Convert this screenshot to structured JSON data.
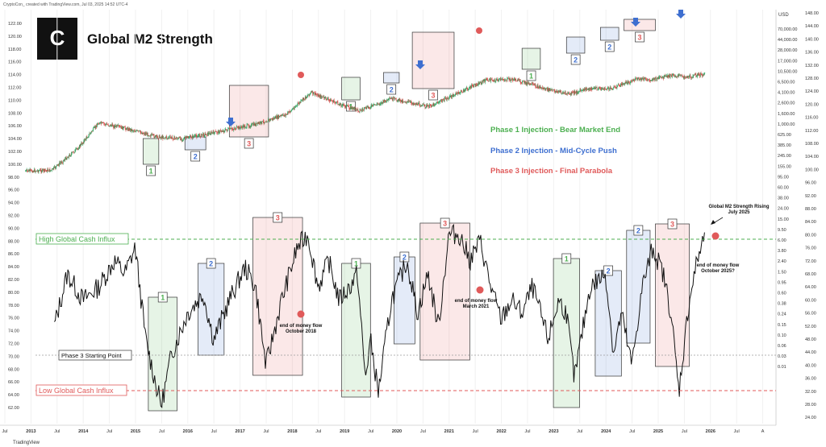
{
  "header": {
    "credit": "CryptoCon_ created with TradingView.com, Jul 03, 2025 14:52 UTC-4",
    "logo_letter": "C",
    "title": "Global M2 Strength",
    "watermark": "TradingView"
  },
  "colors": {
    "phase1": "#4caf50",
    "phase2": "#3e6fd0",
    "phase3": "#e05a5a",
    "candle_up": "#2e9e5b",
    "candle_down": "#d64545",
    "line": "#111111"
  },
  "legend": {
    "phase1": "Phase 1 Injection - Bear Market End",
    "phase2": "Phase 2 Injection - Mid-Cycle Push",
    "phase3": "Phase 3 Injection - Final Parabola"
  },
  "annotations": {
    "high_influx": "High Global Cash Influx",
    "low_influx": "Low Global Cash Influx",
    "phase3_start": "Phase 3 Starting Point",
    "rising_line1": "Global M2 Strength Rising",
    "rising_line2": "July 2025",
    "end2018_line1": "end of money flow",
    "end2018_line2": "October 2018",
    "end2021_line1": "end of money flow",
    "end2021_line2": "March 2021",
    "end2025_line1": "end of money flow",
    "end2025_line2": "October 2025?"
  },
  "axes": {
    "left_ticks": [
      "122.00",
      "120.00",
      "118.00",
      "116.00",
      "114.00",
      "112.00",
      "110.00",
      "108.00",
      "106.00",
      "104.00",
      "102.00",
      "100.00",
      "98.00",
      "96.00",
      "94.00",
      "92.00",
      "90.00",
      "88.00",
      "86.00",
      "84.00",
      "82.00",
      "80.00",
      "78.00",
      "76.00",
      "74.00",
      "72.00",
      "70.00",
      "68.00",
      "66.00",
      "64.00",
      "62.00"
    ],
    "usd_label": "USD",
    "usd_ticks": [
      "70,000.00",
      "44,000.00",
      "28,000.00",
      "17,000.00",
      "10,500.00",
      "6,500.00",
      "4,100.00",
      "2,600.00",
      "1,600.00",
      "1,000.00",
      "625.00",
      "385.00",
      "245.00",
      "155.00",
      "95.00",
      "60.00",
      "38.00",
      "24.00",
      "15.00",
      "9.50",
      "6.00",
      "3.80",
      "2.40",
      "1.50",
      "0.95",
      "0.60",
      "0.38",
      "0.24",
      "0.15",
      "0.10",
      "0.06",
      "0.03",
      "0.01"
    ],
    "right_ticks": [
      "148.00",
      "144.00",
      "140.00",
      "136.00",
      "132.00",
      "128.00",
      "124.00",
      "120.00",
      "116.00",
      "112.00",
      "108.00",
      "104.00",
      "100.00",
      "96.00",
      "92.00",
      "88.00",
      "84.00",
      "80.00",
      "76.00",
      "72.00",
      "68.00",
      "64.00",
      "60.00",
      "56.00",
      "52.00",
      "48.00",
      "44.00",
      "40.00",
      "36.00",
      "32.00",
      "28.00",
      "24.00"
    ],
    "x_ticks": [
      "Jul",
      "2013",
      "Jul",
      "2014",
      "Jul",
      "2015",
      "Jul",
      "2016",
      "Jul",
      "2017",
      "Jul",
      "2018",
      "Jul",
      "2019",
      "Jul",
      "2020",
      "Jul",
      "2021",
      "Jul",
      "2022",
      "Jul",
      "2023",
      "Jul",
      "2024",
      "Jul",
      "2025",
      "Jul",
      "2026",
      "Jul",
      "A"
    ]
  },
  "chart_data": [
    {
      "type": "candlestick",
      "title": "Global M2 Strength",
      "series": [
        {
          "name": "Price (log scale)",
          "x": [
            2012.5,
            2013.0,
            2013.5,
            2013.9,
            2014.5,
            2015.0,
            2015.5,
            2016.0,
            2016.5,
            2016.9,
            2017.5,
            2017.96,
            2018.5,
            2018.9,
            2019.5,
            2019.9,
            2020.2,
            2020.5,
            2021.0,
            2021.3,
            2021.85,
            2022.4,
            2022.9,
            2023.3,
            2023.7,
            2024.2,
            2024.45,
            2024.9,
            2025.2,
            2025.5
          ],
          "y": [
            12,
            13,
            100,
            1100,
            600,
            300,
            250,
            400,
            650,
            950,
            2500,
            19000,
            6500,
            3500,
            10500,
            7200,
            5000,
            9500,
            30000,
            60000,
            65000,
            28000,
            16500,
            28000,
            27000,
            68000,
            62000,
            95000,
            85000,
            108000
          ]
        }
      ]
    },
    {
      "type": "line",
      "series": [
        {
          "name": "Global M2 Strength",
          "x": [
            2013.05,
            2013.3,
            2013.6,
            2013.9,
            2014.2,
            2014.4,
            2014.6,
            2014.8,
            2015.0,
            2015.1,
            2015.3,
            2015.6,
            2015.9,
            2016.1,
            2016.4,
            2016.7,
            2016.9,
            2017.1,
            2017.4,
            2017.7,
            2017.9,
            2018.1,
            2018.3,
            2018.5,
            2018.7,
            2018.85,
            2019.0,
            2019.1,
            2019.25,
            2019.5,
            2019.8,
            2020.0,
            2020.2,
            2020.4,
            2020.6,
            2020.8,
            2021.0,
            2021.2,
            2021.4,
            2021.6,
            2021.8,
            2022.0,
            2022.2,
            2022.5,
            2022.7,
            2022.85,
            2023.0,
            2023.3,
            2023.6,
            2023.75,
            2023.9,
            2024.1,
            2024.3,
            2024.5,
            2024.7,
            2024.85,
            2025.0,
            2025.2,
            2025.35,
            2025.5
          ],
          "y": [
            74,
            82,
            78,
            80,
            84,
            82,
            86,
            72,
            65,
            62,
            70,
            76,
            79,
            72,
            78,
            83,
            80,
            68,
            78,
            86,
            88,
            80,
            84,
            78,
            80,
            82,
            66,
            72,
            64,
            78,
            84,
            76,
            82,
            74,
            88,
            88,
            84,
            87,
            80,
            75,
            78,
            76,
            80,
            72,
            78,
            76,
            66,
            80,
            82,
            70,
            76,
            68,
            80,
            86,
            82,
            76,
            64,
            78,
            84,
            88
          ]
        }
      ],
      "reference_lines": [
        {
          "label": "High Global Cash Influx",
          "y": 87
        },
        {
          "label": "Phase 3 Starting Point",
          "y": 69.5
        },
        {
          "label": "Low Global Cash Influx",
          "y": 64.5
        }
      ]
    }
  ],
  "phase_boxes": {
    "labels": [
      "1",
      "2",
      "3"
    ],
    "upper": [
      {
        "phase": "1",
        "start": 2014.75,
        "end": 2015.05
      },
      {
        "phase": "2",
        "start": 2015.55,
        "end": 2015.95
      },
      {
        "phase": "3",
        "start": 2016.4,
        "end": 2017.15
      },
      {
        "phase": "1",
        "start": 2018.55,
        "end": 2018.9
      },
      {
        "phase": "2",
        "start": 2019.35,
        "end": 2019.65
      },
      {
        "phase": "3",
        "start": 2019.9,
        "end": 2020.7
      },
      {
        "phase": "1",
        "start": 2022.0,
        "end": 2022.35
      },
      {
        "phase": "2",
        "start": 2022.85,
        "end": 2023.2
      },
      {
        "phase": "2",
        "start": 2023.5,
        "end": 2023.85
      },
      {
        "phase": "3",
        "start": 2023.95,
        "end": 2024.55
      }
    ],
    "lower": [
      {
        "phase": "1",
        "start": 2014.85,
        "end": 2015.4
      },
      {
        "phase": "2",
        "start": 2015.8,
        "end": 2016.3
      },
      {
        "phase": "3",
        "start": 2016.85,
        "end": 2017.8
      },
      {
        "phase": "1",
        "start": 2018.55,
        "end": 2019.1
      },
      {
        "phase": "2",
        "start": 2019.55,
        "end": 2019.95
      },
      {
        "phase": "3",
        "start": 2020.05,
        "end": 2021.0
      },
      {
        "phase": "1",
        "start": 2022.6,
        "end": 2023.1
      },
      {
        "phase": "2",
        "start": 2023.4,
        "end": 2023.9
      },
      {
        "phase": "2",
        "start": 2024.0,
        "end": 2024.45
      },
      {
        "phase": "3",
        "start": 2024.55,
        "end": 2025.2
      }
    ]
  }
}
